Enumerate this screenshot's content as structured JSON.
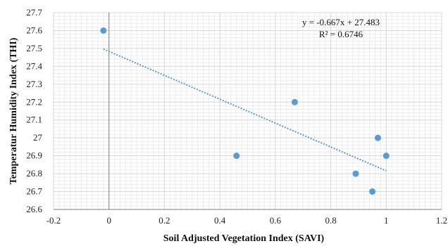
{
  "chart_data": {
    "type": "scatter",
    "xlabel": "Soil Adjusted Vegetation Index (SAVI)",
    "ylabel": "Temperatur Humidity Index (THI)",
    "xlim": [
      -0.2,
      1.2
    ],
    "ylim": [
      26.6,
      27.7
    ],
    "xticks": [
      "-0.2",
      "0",
      "0.2",
      "0.4",
      "0.6",
      "0.8",
      "1",
      "1.2"
    ],
    "yticks": [
      "26.6",
      "26.7",
      "26.8",
      "26.9",
      "27",
      "27.1",
      "27.2",
      "27.3",
      "27.4",
      "27.5",
      "27.6",
      "27.7"
    ],
    "series": [
      {
        "points": [
          {
            "x": -0.02,
            "y": 27.6
          },
          {
            "x": 0.46,
            "y": 26.9
          },
          {
            "x": 0.67,
            "y": 27.2
          },
          {
            "x": 0.89,
            "y": 26.8
          },
          {
            "x": 0.95,
            "y": 26.7
          },
          {
            "x": 0.97,
            "y": 27.0
          },
          {
            "x": 1.0,
            "y": 26.9
          }
        ]
      }
    ],
    "trendline": {
      "type": "linear",
      "slope": -0.667,
      "intercept": 27.483,
      "equation": "y = -0.667x + 27.483",
      "r2": "R² = 0.6746"
    },
    "grid": true,
    "colors": {
      "points": "#5b9bd5",
      "trendline": "#5b9bd5",
      "grid": "#d9d9d9",
      "axis": "#7f7f7f"
    }
  }
}
